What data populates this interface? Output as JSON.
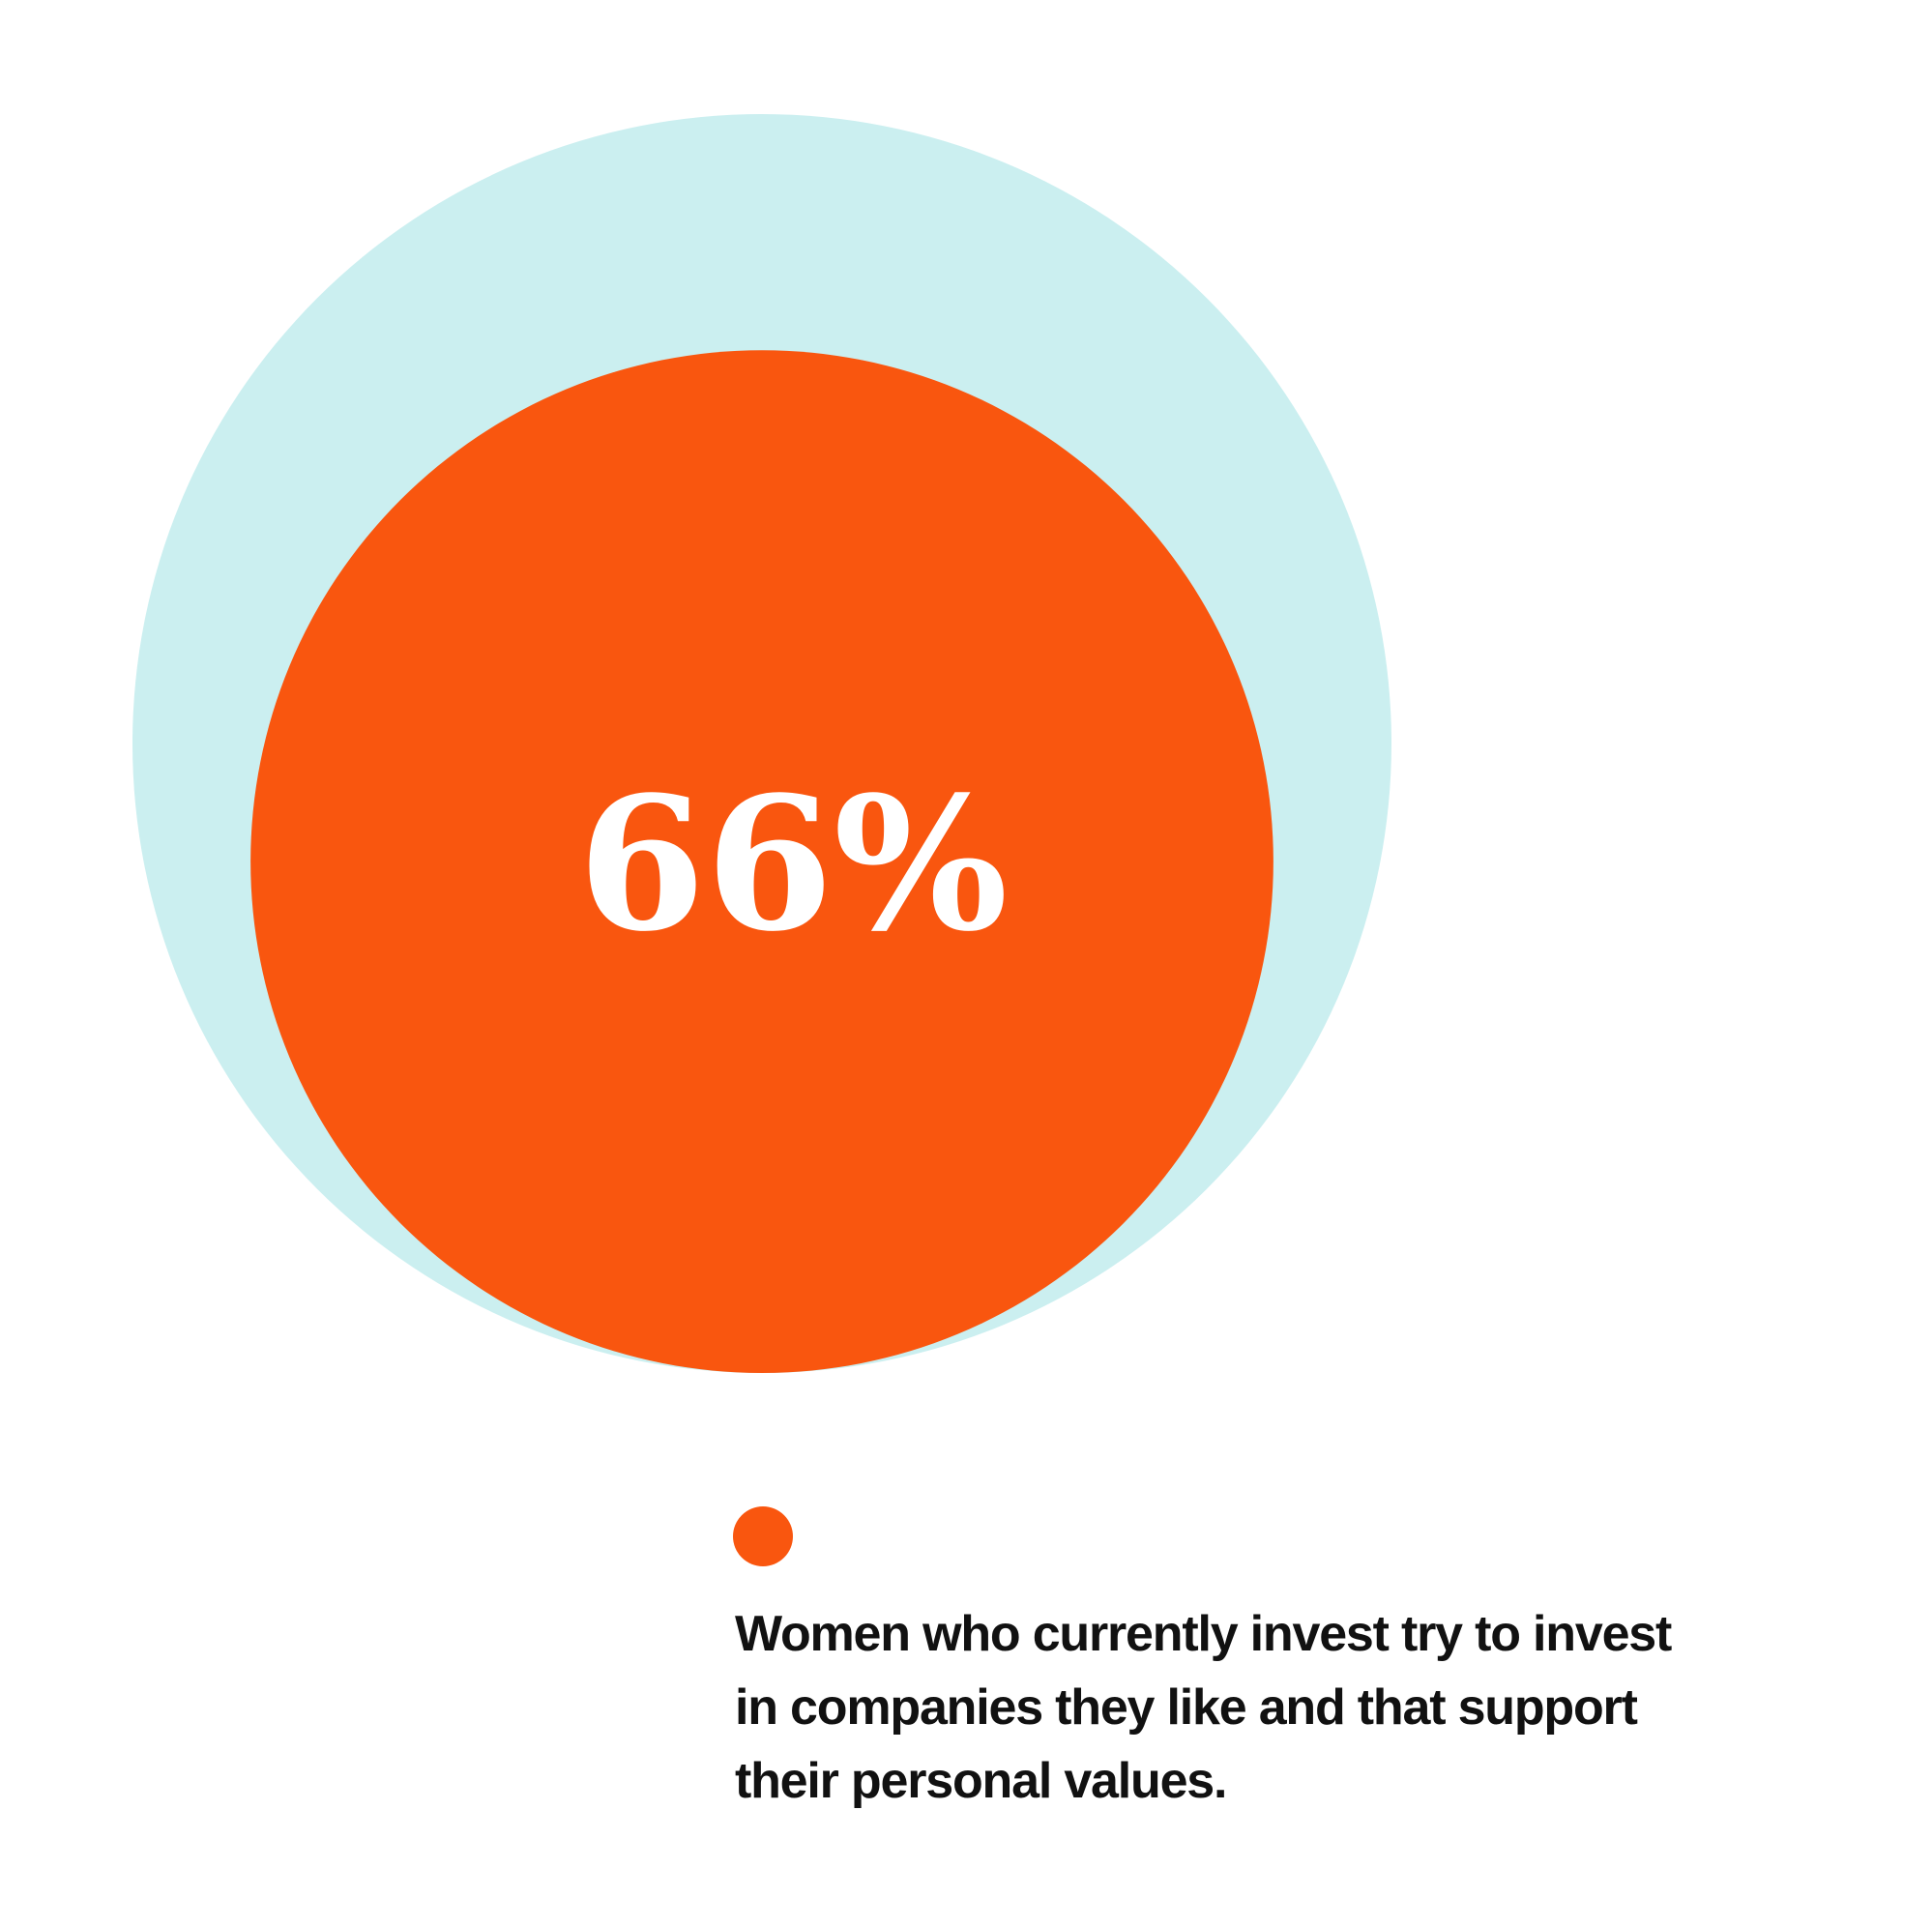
{
  "chart_data": {
    "type": "proportional-area",
    "ylim": [
      0,
      100
    ],
    "background_color": "#cbeff0",
    "series": [
      {
        "name": "Women who currently invest try to invest in companies they like and that support their personal values.",
        "color": "#f9560f",
        "values": [
          66
        ],
        "value_labels": [
          "66%"
        ]
      }
    ]
  }
}
